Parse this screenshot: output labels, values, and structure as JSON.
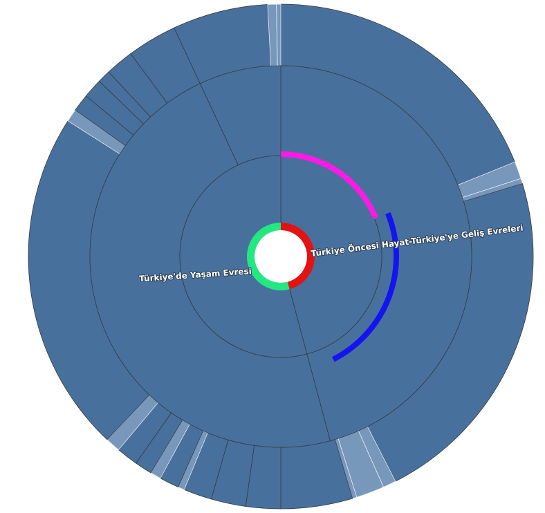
{
  "chart_data": {
    "type": "sunburst",
    "base_color": "#48709c",
    "light_color": "#7797bb",
    "ring_colors": {
      "root_left": "#22e882",
      "root_right": "#e51212",
      "mid_upper": "#ff19e6",
      "mid_lower": "#1414f0"
    },
    "labels": [
      {
        "id": "right",
        "text": "Türkiye Öncesi Hayat-Türkiye'ye Geliş Evreleri"
      },
      {
        "id": "left",
        "text": "Türkiye'de Yaşam Evresi"
      }
    ],
    "levels": [
      [
        {
          "start": 0,
          "end": 165
        },
        {
          "start": 165,
          "end": 360
        }
      ],
      [
        {
          "start": 0,
          "end": 165
        },
        {
          "start": 165,
          "end": 335
        },
        {
          "start": 335,
          "end": 360
        }
      ],
      [
        {
          "start": 0,
          "end": 68
        },
        {
          "start": 68,
          "end": 72,
          "light": true
        },
        {
          "start": 72,
          "end": 73.2,
          "light": true
        },
        {
          "start": 73.2,
          "end": 153
        },
        {
          "start": 153,
          "end": 156,
          "light": true
        },
        {
          "start": 156,
          "end": 162.5,
          "light": true
        },
        {
          "start": 162.5,
          "end": 163.5,
          "light": true
        },
        {
          "start": 163.5,
          "end": 180
        },
        {
          "start": 180,
          "end": 188
        },
        {
          "start": 188,
          "end": 196
        },
        {
          "start": 196,
          "end": 202.5
        },
        {
          "start": 202.5,
          "end": 204,
          "light": true
        },
        {
          "start": 204,
          "end": 208.5
        },
        {
          "start": 208.5,
          "end": 211,
          "light": true
        },
        {
          "start": 211,
          "end": 215
        },
        {
          "start": 215,
          "end": 220
        },
        {
          "start": 220,
          "end": 223.5,
          "light": true
        },
        {
          "start": 223.5,
          "end": 302.5
        },
        {
          "start": 302.5,
          "end": 305.5,
          "light": true
        },
        {
          "start": 305.5,
          "end": 309.5
        },
        {
          "start": 309.5,
          "end": 314
        },
        {
          "start": 314,
          "end": 317
        },
        {
          "start": 317,
          "end": 323.5
        },
        {
          "start": 323.5,
          "end": 335
        },
        {
          "start": 335,
          "end": 357
        },
        {
          "start": 357,
          "end": 359,
          "light": true
        },
        {
          "start": 359,
          "end": 360,
          "light": true
        }
      ]
    ]
  }
}
